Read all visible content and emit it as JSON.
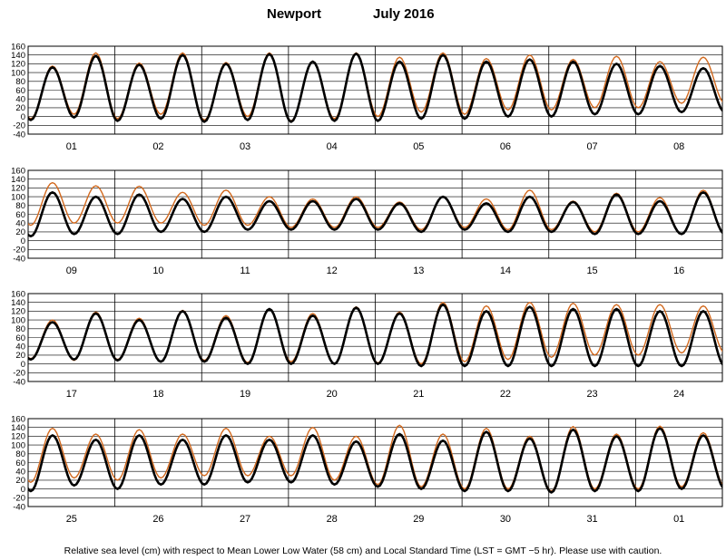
{
  "title": {
    "station": "Newport",
    "period": "July 2016"
  },
  "footer": "Relative sea level (cm) with respect to Mean Lower Low Water (58 cm) and Local Standard Time (LST = GMT −5 hr). Please use with caution.",
  "colors": {
    "observed": "#000000",
    "predicted": "#d2691e",
    "grid": "#000000"
  },
  "chart_data": [
    {
      "type": "line",
      "days": [
        "01",
        "02",
        "03",
        "04",
        "05",
        "06",
        "07",
        "08"
      ],
      "ylim": [
        -40,
        160
      ],
      "yticks": [
        -40,
        -20,
        0,
        20,
        40,
        60,
        80,
        100,
        120,
        140,
        160
      ],
      "series": [
        {
          "key": "observed",
          "highs": [
            [
              112,
              138
            ],
            [
              118,
              140
            ],
            [
              120,
              142
            ],
            [
              125,
              143
            ],
            [
              125,
              140
            ],
            [
              125,
              130
            ],
            [
              125,
              120
            ],
            [
              115,
              110
            ]
          ],
          "lows": [
            [
              -8,
              -2
            ],
            [
              -10,
              -5
            ],
            [
              -12,
              -8
            ],
            [
              -12,
              -10
            ],
            [
              -10,
              -5
            ],
            [
              -5,
              0
            ],
            [
              0,
              5
            ],
            [
              5,
              10
            ]
          ]
        },
        {
          "key": "predicted",
          "highs": [
            [
              115,
              145
            ],
            [
              122,
              145
            ],
            [
              123,
              145
            ],
            [
              126,
              145
            ],
            [
              135,
              145
            ],
            [
              132,
              140
            ],
            [
              130,
              137
            ],
            [
              125,
              135
            ]
          ],
          "lows": [
            [
              -5,
              5
            ],
            [
              -5,
              5
            ],
            [
              -8,
              0
            ],
            [
              -10,
              -5
            ],
            [
              0,
              10
            ],
            [
              5,
              15
            ],
            [
              15,
              20
            ],
            [
              20,
              30
            ]
          ]
        }
      ]
    },
    {
      "type": "line",
      "days": [
        "09",
        "10",
        "11",
        "12",
        "13",
        "14",
        "15",
        "16"
      ],
      "ylim": [
        -40,
        160
      ],
      "yticks": [
        -40,
        -20,
        0,
        20,
        40,
        60,
        80,
        100,
        120,
        140,
        160
      ],
      "series": [
        {
          "key": "observed",
          "highs": [
            [
              110,
              100
            ],
            [
              105,
              95
            ],
            [
              100,
              90
            ],
            [
              90,
              95
            ],
            [
              85,
              100
            ],
            [
              85,
              100
            ],
            [
              88,
              105
            ],
            [
              90,
              110
            ]
          ],
          "lows": [
            [
              10,
              15
            ],
            [
              15,
              20
            ],
            [
              20,
              25
            ],
            [
              25,
              25
            ],
            [
              25,
              20
            ],
            [
              25,
              20
            ],
            [
              20,
              15
            ],
            [
              15,
              15
            ]
          ]
        },
        {
          "key": "predicted",
          "highs": [
            [
              132,
              125
            ],
            [
              124,
              110
            ],
            [
              115,
              100
            ],
            [
              95,
              100
            ],
            [
              88,
              100
            ],
            [
              95,
              115
            ],
            [
              90,
              108
            ],
            [
              98,
              115
            ]
          ],
          "lows": [
            [
              35,
              40
            ],
            [
              40,
              40
            ],
            [
              35,
              35
            ],
            [
              30,
              30
            ],
            [
              30,
              25
            ],
            [
              30,
              25
            ],
            [
              25,
              20
            ],
            [
              20,
              15
            ]
          ]
        }
      ]
    },
    {
      "type": "line",
      "days": [
        "17",
        "18",
        "19",
        "20",
        "21",
        "22",
        "23",
        "24"
      ],
      "ylim": [
        -40,
        160
      ],
      "yticks": [
        -40,
        -20,
        0,
        20,
        40,
        60,
        80,
        100,
        120,
        140,
        160
      ],
      "series": [
        {
          "key": "observed",
          "highs": [
            [
              95,
              115
            ],
            [
              100,
              120
            ],
            [
              105,
              125
            ],
            [
              110,
              128
            ],
            [
              115,
              135
            ],
            [
              120,
              130
            ],
            [
              125,
              125
            ],
            [
              120,
              120
            ]
          ],
          "lows": [
            [
              10,
              10
            ],
            [
              8,
              5
            ],
            [
              5,
              0
            ],
            [
              0,
              0
            ],
            [
              0,
              -5
            ],
            [
              -5,
              -5
            ],
            [
              -5,
              -5
            ],
            [
              -5,
              -5
            ]
          ]
        },
        {
          "key": "predicted",
          "highs": [
            [
              100,
              118
            ],
            [
              104,
              122
            ],
            [
              110,
              125
            ],
            [
              115,
              130
            ],
            [
              118,
              140
            ],
            [
              132,
              140
            ],
            [
              138,
              135
            ],
            [
              135,
              132
            ]
          ],
          "lows": [
            [
              12,
              8
            ],
            [
              10,
              5
            ],
            [
              8,
              3
            ],
            [
              5,
              0
            ],
            [
              2,
              0
            ],
            [
              5,
              10
            ],
            [
              15,
              20
            ],
            [
              20,
              25
            ]
          ]
        }
      ]
    },
    {
      "type": "line",
      "days": [
        "25",
        "26",
        "27",
        "28",
        "29",
        "30",
        "31",
        "01"
      ],
      "ylim": [
        -40,
        160
      ],
      "yticks": [
        -40,
        -20,
        0,
        20,
        40,
        60,
        80,
        100,
        120,
        140,
        160
      ],
      "series": [
        {
          "key": "observed",
          "highs": [
            [
              122,
              112
            ],
            [
              122,
              112
            ],
            [
              122,
              112
            ],
            [
              122,
              108
            ],
            [
              125,
              110
            ],
            [
              130,
              115
            ],
            [
              135,
              120
            ],
            [
              138,
              122
            ]
          ],
          "lows": [
            [
              -5,
              8
            ],
            [
              0,
              10
            ],
            [
              10,
              15
            ],
            [
              15,
              10
            ],
            [
              5,
              0
            ],
            [
              -5,
              -5
            ],
            [
              -8,
              -5
            ],
            [
              -5,
              0
            ]
          ]
        },
        {
          "key": "predicted",
          "highs": [
            [
              138,
              125
            ],
            [
              135,
              125
            ],
            [
              138,
              120
            ],
            [
              140,
              120
            ],
            [
              145,
              125
            ],
            [
              138,
              120
            ],
            [
              142,
              125
            ],
            [
              143,
              128
            ]
          ],
          "lows": [
            [
              15,
              25
            ],
            [
              20,
              25
            ],
            [
              30,
              30
            ],
            [
              30,
              20
            ],
            [
              10,
              5
            ],
            [
              0,
              0
            ],
            [
              -5,
              0
            ],
            [
              0,
              5
            ]
          ]
        }
      ]
    }
  ]
}
